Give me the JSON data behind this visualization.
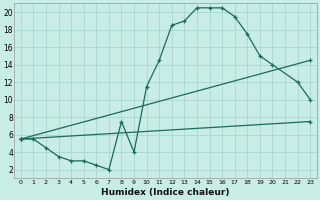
{
  "title": "",
  "xlabel": "Humidex (Indice chaleur)",
  "ylabel": "",
  "background_color": "#c8ece6",
  "grid_color": "#a8d8d0",
  "line_color": "#1a6b5a",
  "xlim": [
    -0.5,
    23.5
  ],
  "ylim": [
    1,
    21
  ],
  "yticks": [
    2,
    4,
    6,
    8,
    10,
    12,
    14,
    16,
    18,
    20
  ],
  "xticks": [
    0,
    1,
    2,
    3,
    4,
    5,
    6,
    7,
    8,
    9,
    10,
    11,
    12,
    13,
    14,
    15,
    16,
    17,
    18,
    19,
    20,
    21,
    22,
    23
  ],
  "xtick_labels": [
    "0",
    "1",
    "2",
    "3",
    "4",
    "5",
    "6",
    "7",
    "8",
    "9",
    "10",
    "11",
    "12",
    "13",
    "14",
    "15",
    "16",
    "17",
    "18",
    "19",
    "20",
    "21",
    "22",
    "23"
  ],
  "line1_x": [
    0,
    1,
    2,
    3,
    4,
    5,
    6,
    7,
    8,
    9,
    10,
    11,
    12,
    13,
    14,
    15,
    16,
    17,
    18,
    19,
    20,
    22,
    23
  ],
  "line1_y": [
    5.5,
    5.5,
    4.5,
    3.5,
    3.0,
    3.0,
    2.5,
    2.0,
    7.5,
    4.0,
    11.5,
    14.5,
    18.5,
    19.0,
    20.5,
    20.5,
    20.5,
    19.5,
    17.5,
    15.0,
    14.0,
    12.0,
    10.0
  ],
  "line2_x": [
    0,
    23
  ],
  "line2_y": [
    5.5,
    14.5
  ],
  "line3_x": [
    0,
    23
  ],
  "line3_y": [
    5.5,
    7.5
  ]
}
